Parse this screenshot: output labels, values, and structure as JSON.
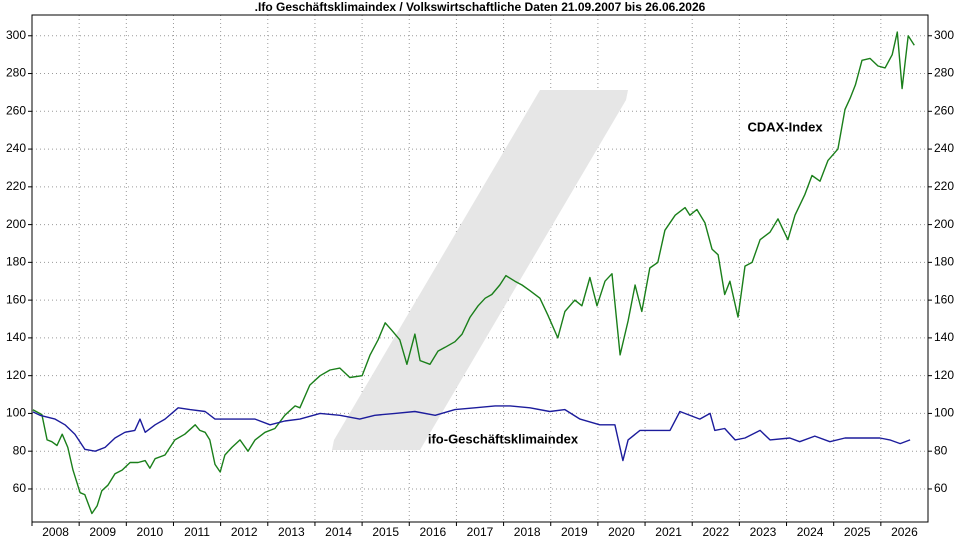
{
  "chart_data": {
    "type": "line",
    "title": ".Ifo Geschäftsklimaindex / Volkswirtschaftliche Daten 21.09.2007 bis 26.06.2026",
    "xlim": [
      2008,
      2027
    ],
    "xticks": [
      2008,
      2009,
      2010,
      2011,
      2012,
      2013,
      2014,
      2015,
      2016,
      2017,
      2018,
      2019,
      2020,
      2021,
      2022,
      2023,
      2024,
      2025,
      2026
    ],
    "ylim": [
      42.5,
      311
    ],
    "yticks": [
      60,
      80,
      100,
      120,
      140,
      160,
      180,
      200,
      220,
      240,
      260,
      280,
      300
    ],
    "grid": true,
    "series": [
      {
        "name": "CDAX-Index",
        "color": "#1a7f1a",
        "x": [
          2008.02,
          2008.21,
          2008.32,
          2008.42,
          2008.53,
          2008.64,
          2008.76,
          2008.87,
          2009.02,
          2009.12,
          2009.27,
          2009.38,
          2009.48,
          2009.61,
          2009.76,
          2009.91,
          2010.08,
          2010.25,
          2010.4,
          2010.5,
          2010.61,
          2010.82,
          2011.03,
          2011.24,
          2011.46,
          2011.56,
          2011.67,
          2011.77,
          2011.88,
          2011.99,
          2012.09,
          2012.24,
          2012.41,
          2012.58,
          2012.73,
          2012.94,
          2013.15,
          2013.36,
          2013.58,
          2013.68,
          2013.89,
          2014.11,
          2014.32,
          2014.53,
          2014.74,
          2015.0,
          2015.17,
          2015.34,
          2015.49,
          2015.63,
          2015.8,
          2015.95,
          2016.12,
          2016.23,
          2016.44,
          2016.61,
          2016.76,
          2016.97,
          2017.12,
          2017.29,
          2017.46,
          2017.61,
          2017.75,
          2017.92,
          2018.05,
          2018.24,
          2018.39,
          2018.56,
          2018.77,
          2018.94,
          2019.15,
          2019.3,
          2019.51,
          2019.66,
          2019.83,
          2019.98,
          2020.15,
          2020.3,
          2020.47,
          2020.64,
          2020.79,
          2020.93,
          2021.1,
          2021.27,
          2021.42,
          2021.64,
          2021.85,
          2021.95,
          2022.1,
          2022.27,
          2022.42,
          2022.55,
          2022.69,
          2022.8,
          2022.97,
          2023.12,
          2023.27,
          2023.44,
          2023.65,
          2023.82,
          2024.03,
          2024.18,
          2024.39,
          2024.54,
          2024.71,
          2024.88,
          2025.09,
          2025.24,
          2025.35,
          2025.46,
          2025.6,
          2025.77,
          2025.94,
          2026.09,
          2026.24,
          2026.35,
          2026.45,
          2026.58,
          2026.71
        ],
        "values": [
          101.9,
          99.4,
          86,
          85,
          83,
          89,
          82,
          70,
          58,
          57,
          47,
          51,
          59,
          62,
          68,
          70,
          74,
          74,
          75,
          71,
          76,
          78,
          86,
          89,
          94,
          91,
          90,
          86,
          73,
          69,
          78,
          82,
          86,
          80,
          86,
          90,
          92,
          99,
          104,
          103,
          115,
          120,
          123,
          124,
          119,
          120,
          131,
          139,
          148,
          144,
          139,
          126,
          142,
          128,
          126,
          133,
          135,
          138,
          142,
          151,
          157,
          161,
          163,
          168,
          173,
          170,
          168,
          165,
          161,
          152,
          140,
          154,
          160,
          157,
          172,
          157,
          170,
          174,
          131,
          149,
          168,
          154,
          177,
          180,
          197,
          205,
          209,
          205,
          208,
          201,
          187,
          184,
          163,
          170,
          151,
          178,
          180,
          192,
          196,
          203,
          192,
          205,
          216,
          226,
          223,
          234,
          240,
          261,
          267,
          274,
          287,
          288,
          284,
          283,
          290,
          302,
          272,
          300,
          295
        ]
      },
      {
        "name": "ifo-Geschäftsklimaindex",
        "color": "#1c1c9c",
        "x": [
          2008.02,
          2008.17,
          2008.49,
          2008.7,
          2008.91,
          2009.12,
          2009.34,
          2009.55,
          2009.76,
          2009.97,
          2010.18,
          2010.29,
          2010.4,
          2010.61,
          2010.82,
          2011.1,
          2011.35,
          2011.67,
          2011.88,
          2012.3,
          2012.73,
          2013.05,
          2013.36,
          2013.68,
          2014.11,
          2014.53,
          2014.95,
          2015.27,
          2015.7,
          2016.12,
          2016.55,
          2016.97,
          2017.39,
          2017.82,
          2018.14,
          2018.56,
          2018.98,
          2019.3,
          2019.62,
          2020.04,
          2020.36,
          2020.53,
          2020.64,
          2020.89,
          2021.21,
          2021.53,
          2021.74,
          2022.16,
          2022.38,
          2022.48,
          2022.69,
          2022.91,
          2023.12,
          2023.44,
          2023.65,
          2024.07,
          2024.28,
          2024.6,
          2024.92,
          2025.24,
          2025.66,
          2025.98,
          2026.19,
          2026.41,
          2026.62
        ],
        "values": [
          100.8,
          99,
          97,
          94,
          89,
          81,
          80,
          82,
          87,
          90,
          91,
          97,
          90,
          94,
          97,
          103,
          102,
          101,
          97,
          97,
          97,
          94,
          96,
          97,
          100,
          99,
          97,
          99,
          100,
          101,
          99,
          102,
          103,
          104,
          104,
          103,
          101,
          102,
          97,
          94,
          94,
          75,
          86,
          91,
          91,
          91,
          101,
          97,
          100,
          91,
          92,
          86,
          87,
          91,
          86,
          87,
          85,
          88,
          85,
          87,
          87,
          87,
          86,
          84,
          86
        ]
      }
    ]
  }
}
